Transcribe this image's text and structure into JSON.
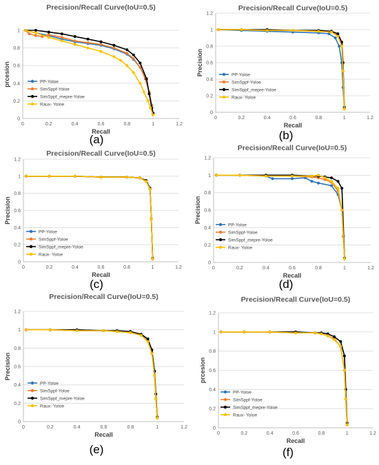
{
  "series_styles": [
    {
      "name": "PP-Yoloe",
      "color": "#2E75B6"
    },
    {
      "name": "SimSppf-Yoloe",
      "color": "#ED7D31"
    },
    {
      "name": "SimSppf_mepre-Yoloe",
      "color": "#000000"
    },
    {
      "name": "Raux- Yoloe",
      "color": "#FFC000"
    }
  ],
  "chart_data": [
    {
      "type": "line",
      "panel_label": "(a)",
      "title": "Precision/Recall Curve(IoU=0.5)",
      "xlabel": "Recall",
      "ylabel": "prcesion",
      "xlim": [
        0,
        1.2
      ],
      "ylim": [
        0,
        1
      ],
      "xticks": [
        "0",
        "0.2",
        "0.4",
        "0.6",
        "0.8",
        "1",
        "1.2"
      ],
      "yticks": [
        "0",
        "0.2",
        "0.4",
        "0.6",
        "0.8",
        "1"
      ],
      "grid": true,
      "legend_position": "bottom-left",
      "series": [
        {
          "name": "PP-Yoloe",
          "color": "#2E75B6",
          "x": [
            0.02,
            0.1,
            0.2,
            0.3,
            0.4,
            0.5,
            0.6,
            0.7,
            0.8,
            0.85,
            0.9,
            0.94,
            0.97,
            0.99,
            1.0
          ],
          "y": [
            1.0,
            0.97,
            0.94,
            0.9,
            0.87,
            0.85,
            0.83,
            0.79,
            0.73,
            0.67,
            0.58,
            0.46,
            0.3,
            0.15,
            0.05
          ]
        },
        {
          "name": "SimSppf-Yoloe",
          "color": "#ED7D31",
          "x": [
            0.02,
            0.05,
            0.1,
            0.15,
            0.2,
            0.3,
            0.4,
            0.5,
            0.6,
            0.7,
            0.8,
            0.85,
            0.9,
            0.94,
            0.97,
            0.99,
            1.0
          ],
          "y": [
            1.0,
            0.96,
            0.94,
            0.93,
            0.95,
            0.92,
            0.88,
            0.86,
            0.84,
            0.8,
            0.74,
            0.68,
            0.58,
            0.45,
            0.3,
            0.15,
            0.04
          ]
        },
        {
          "name": "SimSppf_mepre-Yoloe",
          "color": "#000000",
          "x": [
            0.02,
            0.1,
            0.2,
            0.3,
            0.4,
            0.5,
            0.6,
            0.7,
            0.8,
            0.85,
            0.9,
            0.95,
            0.97,
            0.99,
            1.0
          ],
          "y": [
            1.0,
            1.0,
            0.98,
            0.96,
            0.93,
            0.9,
            0.87,
            0.83,
            0.78,
            0.72,
            0.63,
            0.45,
            0.28,
            0.12,
            0.06
          ]
        },
        {
          "name": "Raux- Yoloe",
          "color": "#FFC000",
          "x": [
            0.02,
            0.1,
            0.2,
            0.3,
            0.4,
            0.5,
            0.6,
            0.7,
            0.75,
            0.8,
            0.85,
            0.9,
            0.93,
            0.96,
            0.98,
            1.0
          ],
          "y": [
            1.0,
            0.97,
            0.92,
            0.88,
            0.84,
            0.8,
            0.76,
            0.7,
            0.66,
            0.6,
            0.52,
            0.4,
            0.3,
            0.2,
            0.12,
            0.04
          ]
        }
      ]
    },
    {
      "type": "line",
      "panel_label": "(b)",
      "title": "Precision/Recall Curve(IoU=0.5)",
      "xlabel": "Recall",
      "ylabel": "Precision",
      "xlim": [
        0,
        1.2
      ],
      "ylim": [
        0,
        1.2
      ],
      "xticks": [
        "0",
        "0.2",
        "0.4",
        "0.6",
        "0.8",
        "1",
        "1.2"
      ],
      "yticks": [
        "0",
        "0.2",
        "0.4",
        "0.6",
        "0.8",
        "1",
        "1.2"
      ],
      "grid": true,
      "legend_position": "left",
      "series": [
        {
          "name": "PP-Yoloe",
          "color": "#2E75B6",
          "x": [
            0.02,
            0.2,
            0.4,
            0.6,
            0.8,
            0.88,
            0.93,
            0.96,
            0.98,
            0.99,
            1.0
          ],
          "y": [
            1.0,
            0.99,
            0.98,
            0.97,
            0.96,
            0.95,
            0.9,
            0.8,
            0.6,
            0.3,
            0.05
          ]
        },
        {
          "name": "SimSppf-Yoloe",
          "color": "#ED7D31",
          "x": [
            0.02,
            0.2,
            0.4,
            0.6,
            0.8,
            0.9,
            0.95,
            0.98,
            0.99,
            1.0
          ],
          "y": [
            1.0,
            1.0,
            0.99,
            0.99,
            0.98,
            0.97,
            0.93,
            0.82,
            0.5,
            0.04
          ]
        },
        {
          "name": "SimSppf_mepre-Yoloe",
          "color": "#000000",
          "x": [
            0.02,
            0.2,
            0.4,
            0.6,
            0.8,
            0.9,
            0.95,
            0.98,
            0.99,
            1.0
          ],
          "y": [
            1.0,
            1.0,
            1.0,
            0.99,
            0.99,
            0.98,
            0.95,
            0.85,
            0.6,
            0.06
          ]
        },
        {
          "name": "Raux- Yoloe",
          "color": "#FFC000",
          "x": [
            0.02,
            0.2,
            0.4,
            0.6,
            0.8,
            0.9,
            0.95,
            0.98,
            0.99,
            1.0
          ],
          "y": [
            1.0,
            1.0,
            0.99,
            0.99,
            0.98,
            0.97,
            0.92,
            0.8,
            0.5,
            0.04
          ]
        }
      ]
    },
    {
      "type": "line",
      "panel_label": "(c)",
      "title": "Precision/Recall Curve(IoU=0.5)",
      "xlabel": "Recall",
      "ylabel": "Precision",
      "xlim": [
        0,
        1.2
      ],
      "ylim": [
        0,
        1.2
      ],
      "xticks": [
        "0",
        "0.2",
        "0.4",
        "0.6",
        "0.8",
        "1",
        "1.2"
      ],
      "yticks": [
        "0",
        "0.2",
        "0.4",
        "0.6",
        "0.8",
        "1",
        "1.2"
      ],
      "grid": true,
      "legend_position": "bottom-left",
      "series": [
        {
          "name": "PP-Yoloe",
          "color": "#2E75B6",
          "x": [
            0.02,
            0.2,
            0.4,
            0.6,
            0.8,
            0.9,
            0.95,
            0.98,
            0.99,
            1.0
          ],
          "y": [
            1.0,
            1.0,
            1.0,
            0.99,
            0.99,
            0.98,
            0.94,
            0.85,
            0.5,
            0.03
          ]
        },
        {
          "name": "SimSppf-Yoloe",
          "color": "#ED7D31",
          "x": [
            0.02,
            0.2,
            0.4,
            0.6,
            0.8,
            0.9,
            0.95,
            0.98,
            0.99,
            1.0
          ],
          "y": [
            1.0,
            1.0,
            1.0,
            0.99,
            0.99,
            0.98,
            0.94,
            0.85,
            0.5,
            0.03
          ]
        },
        {
          "name": "SimSppf_mepre-Yoloe",
          "color": "#000000",
          "x": [
            0.02,
            0.2,
            0.4,
            0.6,
            0.8,
            0.9,
            0.95,
            0.98,
            0.99,
            1.0
          ],
          "y": [
            1.0,
            1.0,
            1.0,
            0.99,
            0.99,
            0.98,
            0.95,
            0.86,
            0.5,
            0.04
          ]
        },
        {
          "name": "Raux- Yoloe",
          "color": "#FFC000",
          "x": [
            0.02,
            0.2,
            0.4,
            0.6,
            0.8,
            0.9,
            0.95,
            0.98,
            0.99,
            1.0
          ],
          "y": [
            1.0,
            1.0,
            1.0,
            0.99,
            0.99,
            0.98,
            0.94,
            0.85,
            0.5,
            0.03
          ]
        }
      ]
    },
    {
      "type": "line",
      "panel_label": "(d)",
      "title": "Precision/Recall Curve(IoU=0.5)",
      "xlabel": "Recall",
      "ylabel": "Precision",
      "xlim": [
        0,
        1.2
      ],
      "ylim": [
        0,
        1.2
      ],
      "xticks": [
        "0",
        "0.2",
        "0.4",
        "0.6",
        "0.8",
        "1",
        "1.2"
      ],
      "yticks": [
        "0",
        "0.2",
        "0.4",
        "0.6",
        "0.8",
        "1",
        "1.2"
      ],
      "grid": true,
      "legend_position": "left",
      "series": [
        {
          "name": "PP-Yoloe",
          "color": "#2E75B6",
          "x": [
            0.02,
            0.2,
            0.4,
            0.45,
            0.6,
            0.7,
            0.75,
            0.8,
            0.9,
            0.95,
            0.98,
            0.99,
            1.0
          ],
          "y": [
            1.0,
            1.0,
            0.99,
            0.96,
            0.96,
            0.97,
            0.93,
            0.91,
            0.88,
            0.78,
            0.6,
            0.3,
            0.05
          ]
        },
        {
          "name": "SimSppf-Yoloe",
          "color": "#ED7D31",
          "x": [
            0.02,
            0.2,
            0.4,
            0.6,
            0.75,
            0.8,
            0.85,
            0.9,
            0.95,
            0.98,
            0.99,
            1.0
          ],
          "y": [
            1.0,
            1.0,
            0.99,
            0.99,
            0.98,
            0.97,
            0.95,
            0.92,
            0.82,
            0.6,
            0.3,
            0.04
          ]
        },
        {
          "name": "SimSppf_mepre-Yoloe",
          "color": "#000000",
          "x": [
            0.02,
            0.2,
            0.4,
            0.6,
            0.75,
            0.8,
            0.85,
            0.9,
            0.95,
            0.98,
            1.0
          ],
          "y": [
            1.0,
            1.0,
            1.0,
            1.0,
            0.99,
            0.99,
            0.98,
            0.97,
            0.93,
            0.85,
            0.05
          ]
        },
        {
          "name": "Raux- Yoloe",
          "color": "#FFC000",
          "x": [
            0.02,
            0.2,
            0.4,
            0.6,
            0.75,
            0.8,
            0.85,
            0.9,
            0.95,
            0.98,
            1.0
          ],
          "y": [
            1.0,
            1.0,
            0.99,
            0.99,
            0.99,
            1.0,
            0.97,
            0.93,
            0.85,
            0.6,
            0.04
          ]
        }
      ]
    },
    {
      "type": "line",
      "panel_label": "(e)",
      "title": "Precision/Recall Curve(IoU=0.5)",
      "xlabel": "Recall",
      "ylabel": "Precision",
      "xlim": [
        0,
        1.2
      ],
      "ylim": [
        0,
        1.2
      ],
      "xticks": [
        "0",
        "0.2",
        "0.4",
        "0.6",
        "0.8",
        "1",
        "1.2"
      ],
      "yticks": [
        "0",
        "0.2",
        "0.4",
        "0.6",
        "0.8",
        "1",
        "1.2"
      ],
      "grid": true,
      "legend_position": "bottom-left",
      "series": [
        {
          "name": "PP-Yoloe",
          "color": "#2E75B6",
          "x": [
            0.02,
            0.2,
            0.4,
            0.6,
            0.7,
            0.8,
            0.88,
            0.93,
            0.96,
            0.98,
            0.99,
            1.0
          ],
          "y": [
            1.0,
            1.0,
            0.99,
            0.99,
            0.98,
            0.97,
            0.94,
            0.88,
            0.75,
            0.5,
            0.25,
            0.04
          ]
        },
        {
          "name": "SimSppf-Yoloe",
          "color": "#ED7D31",
          "x": [
            0.02,
            0.2,
            0.4,
            0.6,
            0.7,
            0.8,
            0.88,
            0.93,
            0.96,
            0.98,
            0.99,
            1.0
          ],
          "y": [
            1.0,
            1.0,
            0.99,
            0.99,
            0.98,
            0.97,
            0.94,
            0.88,
            0.75,
            0.5,
            0.25,
            0.04
          ]
        },
        {
          "name": "SimSppf_mepre-Yoloe",
          "color": "#000000",
          "x": [
            0.02,
            0.2,
            0.4,
            0.6,
            0.7,
            0.8,
            0.88,
            0.93,
            0.96,
            0.98,
            0.99,
            1.0
          ],
          "y": [
            1.0,
            1.0,
            1.0,
            0.99,
            0.99,
            0.98,
            0.95,
            0.9,
            0.78,
            0.55,
            0.3,
            0.05
          ]
        },
        {
          "name": "Raux- Yoloe",
          "color": "#FFC000",
          "x": [
            0.02,
            0.2,
            0.4,
            0.6,
            0.7,
            0.8,
            0.88,
            0.93,
            0.96,
            0.98,
            0.99,
            1.0
          ],
          "y": [
            1.0,
            1.0,
            0.99,
            0.99,
            0.98,
            0.97,
            0.94,
            0.87,
            0.74,
            0.5,
            0.25,
            0.04
          ]
        }
      ]
    },
    {
      "type": "line",
      "panel_label": "(f)",
      "title": "Precision/Recall Curve(IoU=0.5)",
      "xlabel": "Recall",
      "ylabel": "prcesion",
      "xlim": [
        0,
        1.2
      ],
      "ylim": [
        0,
        1.2
      ],
      "xticks": [
        "0",
        "0.2",
        "0.4",
        "0.6",
        "0.8",
        "1",
        "1.2"
      ],
      "yticks": [
        "0",
        "0.2",
        "0.4",
        "0.6",
        "0.8",
        "1",
        "1.2"
      ],
      "grid": true,
      "legend_position": "bottom-left",
      "series": [
        {
          "name": "PP-Yoloe",
          "color": "#2E75B6",
          "x": [
            0.02,
            0.2,
            0.4,
            0.6,
            0.75,
            0.8,
            0.85,
            0.9,
            0.95,
            0.98,
            0.99,
            1.0
          ],
          "y": [
            1.0,
            1.0,
            1.0,
            0.99,
            0.99,
            0.98,
            0.96,
            0.92,
            0.85,
            0.6,
            0.3,
            0.03
          ]
        },
        {
          "name": "SimSppf-Yoloe",
          "color": "#ED7D31",
          "x": [
            0.02,
            0.2,
            0.4,
            0.6,
            0.75,
            0.8,
            0.85,
            0.9,
            0.95,
            0.98,
            0.99,
            1.0
          ],
          "y": [
            1.0,
            1.0,
            1.0,
            0.99,
            0.99,
            0.98,
            0.96,
            0.93,
            0.85,
            0.6,
            0.3,
            0.03
          ]
        },
        {
          "name": "SimSppf_mepre-Yoloe",
          "color": "#000000",
          "x": [
            0.02,
            0.2,
            0.4,
            0.6,
            0.75,
            0.8,
            0.85,
            0.9,
            0.95,
            0.98,
            0.99,
            1.0
          ],
          "y": [
            1.0,
            1.0,
            1.0,
            1.0,
            0.99,
            0.99,
            0.98,
            0.95,
            0.9,
            0.75,
            0.4,
            0.05
          ]
        },
        {
          "name": "Raux- Yoloe",
          "color": "#FFC000",
          "x": [
            0.02,
            0.2,
            0.4,
            0.6,
            0.75,
            0.8,
            0.85,
            0.9,
            0.95,
            0.98,
            0.99,
            1.0
          ],
          "y": [
            1.0,
            1.0,
            1.0,
            0.99,
            0.99,
            0.98,
            0.96,
            0.92,
            0.85,
            0.6,
            0.3,
            0.03
          ]
        }
      ]
    }
  ]
}
